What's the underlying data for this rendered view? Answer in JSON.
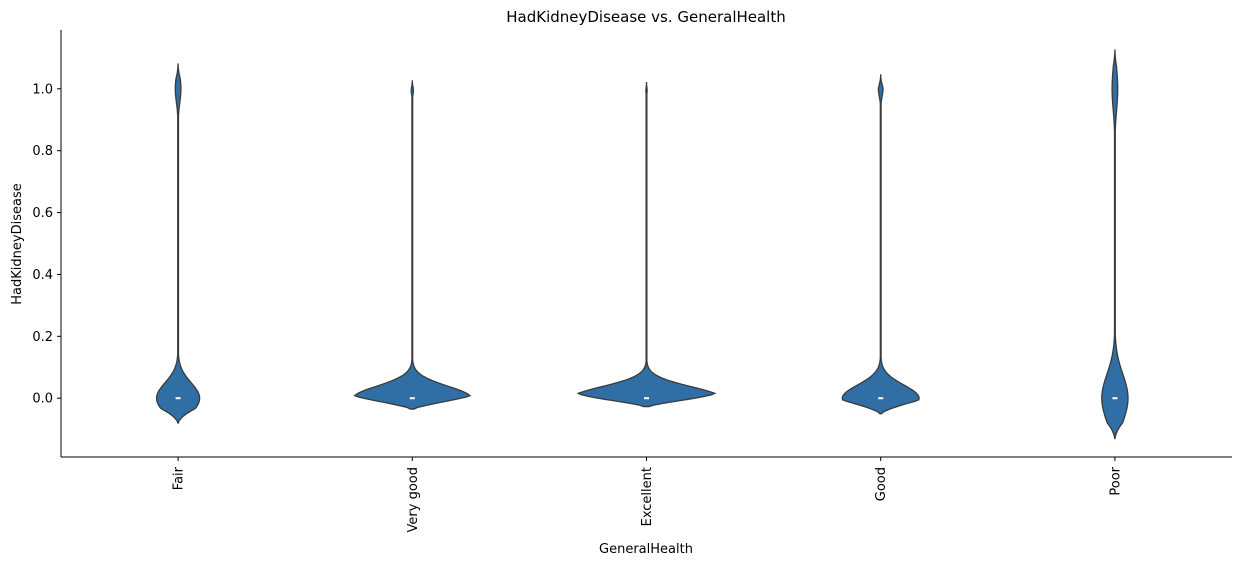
{
  "chart_data": {
    "type": "violin",
    "title": "HadKidneyDisease vs. GeneralHealth",
    "xlabel": "GeneralHealth",
    "ylabel": "HadKidneyDisease",
    "categories": [
      "Fair",
      "Very good",
      "Excellent",
      "Good",
      "Poor"
    ],
    "ylim": [
      -0.19,
      1.19
    ],
    "yticks": [
      0.0,
      0.2,
      0.4,
      0.6,
      0.8,
      1.0
    ],
    "ytick_labels": [
      "0.0",
      "0.2",
      "0.4",
      "0.6",
      "0.8",
      "1.0"
    ],
    "color": "#2f6fa5",
    "violins": [
      {
        "category": "Fair",
        "min": -0.08,
        "max": 1.08,
        "median": 0.0,
        "q1": 0.0,
        "q3": 0.0,
        "bottom_mode_width": 0.23,
        "top_mode_width": 0.03,
        "prop_one": 0.06
      },
      {
        "category": "Very good",
        "min": -0.035,
        "max": 1.025,
        "median": 0.0,
        "q1": 0.0,
        "q3": 0.0,
        "bottom_mode_width": 0.63,
        "top_mode_width": 0.018,
        "prop_one": 0.02
      },
      {
        "category": "Excellent",
        "min": -0.027,
        "max": 1.02,
        "median": 0.0,
        "q1": 0.0,
        "q3": 0.0,
        "bottom_mode_width": 0.8,
        "top_mode_width": 0.012,
        "prop_one": 0.01
      },
      {
        "category": "Good",
        "min": -0.05,
        "max": 1.045,
        "median": 0.0,
        "q1": 0.0,
        "q3": 0.0,
        "bottom_mode_width": 0.41,
        "top_mode_width": 0.025,
        "prop_one": 0.04
      },
      {
        "category": "Poor",
        "min": -0.13,
        "max": 1.125,
        "median": 0.0,
        "q1": 0.0,
        "q3": 0.0,
        "bottom_mode_width": 0.14,
        "top_mode_width": 0.03,
        "prop_one": 0.13
      }
    ],
    "grid": false,
    "legend": "none"
  }
}
